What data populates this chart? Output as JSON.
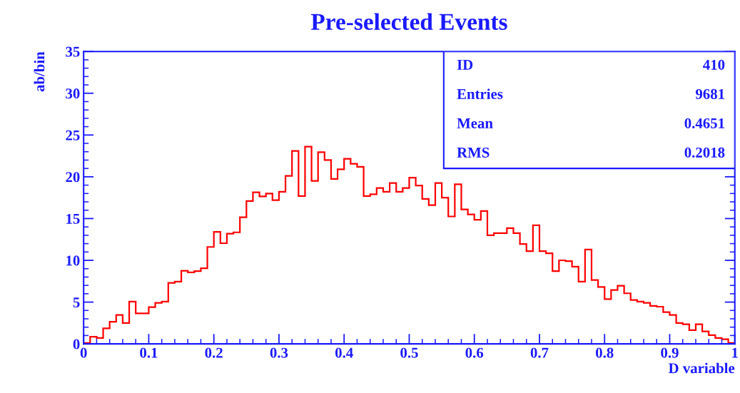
{
  "chart_data": {
    "type": "histogram",
    "title": "Pre-selected Events",
    "xlabel": "D variable",
    "ylabel": "ab/bin",
    "color": "#ff0000",
    "bins": [
      0,
      0.01,
      0.02,
      0.03,
      0.04,
      0.05,
      0.06,
      0.07,
      0.08,
      0.09,
      0.1,
      0.11,
      0.12,
      0.13,
      0.14,
      0.15,
      0.16,
      0.17,
      0.18,
      0.19,
      0.2,
      0.21,
      0.22,
      0.23,
      0.24,
      0.25,
      0.26,
      0.27,
      0.28,
      0.29,
      0.3,
      0.31,
      0.32,
      0.33,
      0.34,
      0.35,
      0.36,
      0.37,
      0.38,
      0.39,
      0.4,
      0.41,
      0.42,
      0.43,
      0.44,
      0.45,
      0.46,
      0.47,
      0.48,
      0.49,
      0.5,
      0.51,
      0.52,
      0.53,
      0.54,
      0.55,
      0.56,
      0.57,
      0.58,
      0.59,
      0.6,
      0.61,
      0.62,
      0.63,
      0.64,
      0.65,
      0.66,
      0.67,
      0.68,
      0.69,
      0.7,
      0.71,
      0.72,
      0.73,
      0.74,
      0.75,
      0.76,
      0.77,
      0.78,
      0.79,
      0.8,
      0.81,
      0.82,
      0.83,
      0.84,
      0.85,
      0.86,
      0.87,
      0.88,
      0.89,
      0.9,
      0.91,
      0.92,
      0.93,
      0.94,
      0.95,
      0.96,
      0.97,
      0.98,
      0.99,
      1
    ],
    "values": [
      0.1,
      0.85,
      0.7,
      1.85,
      2.65,
      3.45,
      2.5,
      5.05,
      3.65,
      3.65,
      4.4,
      4.9,
      5.05,
      7.3,
      7.45,
      8.75,
      8.55,
      8.7,
      9.05,
      11.6,
      13.4,
      12.05,
      13.2,
      13.35,
      15.15,
      17.1,
      18.15,
      17.65,
      18.0,
      17.2,
      18.2,
      20.1,
      23.1,
      17.7,
      23.6,
      19.5,
      22.95,
      22.0,
      19.75,
      20.9,
      22.15,
      21.55,
      21.2,
      17.7,
      17.9,
      18.65,
      18.2,
      19.25,
      18.2,
      18.65,
      19.9,
      18.95,
      17.35,
      16.6,
      19.25,
      17.5,
      15.25,
      19.1,
      16.1,
      15.5,
      14.85,
      15.9,
      13.0,
      13.25,
      13.25,
      13.85,
      13.25,
      11.95,
      11.1,
      14.2,
      11.1,
      10.85,
      8.7,
      10.0,
      9.9,
      9.25,
      7.45,
      11.3,
      7.65,
      6.8,
      5.35,
      6.45,
      6.95,
      6.05,
      5.25,
      5.05,
      4.9,
      4.55,
      4.45,
      3.8,
      3.45,
      2.5,
      2.35,
      1.65,
      2.35,
      1.5,
      1.05,
      0.7,
      0.55,
      0.1
    ],
    "xlim": [
      0,
      1
    ],
    "xticks": [
      0,
      {
        "value": 0.1,
        "label": "0.1"
      },
      {
        "value": 0.2,
        "label": "0.2"
      },
      {
        "value": 0.3,
        "label": "0.3"
      },
      {
        "value": 0.4,
        "label": "0.4"
      },
      {
        "value": 0.5,
        "label": "0.5"
      },
      {
        "value": 0.6,
        "label": "0.6"
      },
      {
        "value": 0.7,
        "label": "0.7"
      },
      {
        "value": 0.8,
        "label": "0.8"
      },
      {
        "value": 0.9,
        "label": "0.9"
      },
      1
    ],
    "ylim": [
      0,
      35
    ],
    "yticks": [
      0,
      5,
      10,
      15,
      20,
      25,
      30,
      35
    ],
    "annotations": [
      "ID",
      "410",
      "Entries",
      "9681",
      "Mean",
      "0.4651",
      "RMS",
      "0.2018"
    ],
    "grid": false
  }
}
